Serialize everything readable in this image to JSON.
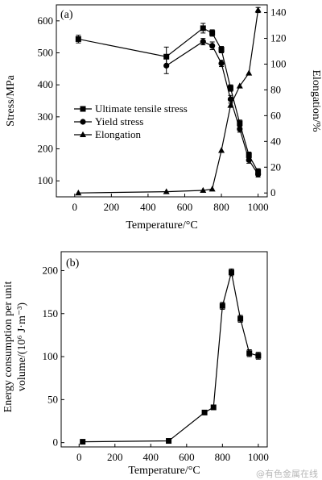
{
  "chart_data": [
    {
      "type": "line",
      "panel_label": "(a)",
      "xlabel": "Temperature/°C",
      "ylabel": "Stress/MPa",
      "y2label": "Elongation/%",
      "xlim": [
        -100,
        1050
      ],
      "ylim": [
        50,
        650
      ],
      "y2lim": [
        -3,
        146
      ],
      "xticks": [
        0,
        200,
        400,
        600,
        800,
        1000
      ],
      "yticks": [
        100,
        200,
        300,
        400,
        500,
        600
      ],
      "y2ticks": [
        0,
        20,
        40,
        60,
        80,
        100,
        120,
        140
      ],
      "legend_position": "center-right",
      "series": [
        {
          "name": "Ultimate tensile stress",
          "axis": "left",
          "marker": "square",
          "x": [
            20,
            500,
            700,
            750,
            800,
            850,
            900,
            950,
            1000
          ],
          "y": [
            543,
            488,
            577,
            562,
            510,
            390,
            280,
            180,
            128
          ],
          "error": [
            12,
            30,
            15,
            10,
            10,
            10,
            10,
            10,
            10
          ]
        },
        {
          "name": "Yield stress",
          "axis": "left",
          "marker": "circle",
          "x": [
            500,
            700,
            750,
            800,
            850,
            900,
            950,
            1000
          ],
          "y": [
            460,
            535,
            522,
            467,
            355,
            262,
            165,
            120
          ],
          "error": [
            25,
            10,
            12,
            10,
            12,
            10,
            10,
            8
          ]
        },
        {
          "name": "Elongation",
          "axis": "right",
          "marker": "triangle",
          "x": [
            20,
            500,
            700,
            750,
            800,
            850,
            900,
            950,
            1000
          ],
          "y": [
            0,
            1,
            2,
            3,
            33,
            68,
            83,
            93,
            142
          ],
          "error": [
            0,
            0,
            0,
            0,
            0,
            0,
            0,
            0,
            2
          ]
        }
      ]
    },
    {
      "type": "line",
      "panel_label": "(b)",
      "xlabel": "Temperature/°C",
      "ylabel_lines": [
        "Energy consumption per unit",
        "volume/(10⁶ J·m⁻³)"
      ],
      "xlim": [
        -100,
        1050
      ],
      "ylim": [
        -5,
        222
      ],
      "xticks": [
        0,
        200,
        400,
        600,
        800,
        1000
      ],
      "yticks": [
        0,
        50,
        100,
        150,
        200
      ],
      "series": [
        {
          "marker": "square",
          "x": [
            20,
            500,
            700,
            750,
            800,
            850,
            900,
            950,
            1000
          ],
          "y": [
            1,
            2,
            35,
            41,
            159,
            198,
            144,
            104,
            101
          ],
          "error": [
            0.5,
            0.5,
            1,
            1,
            4,
            4,
            4,
            4,
            4
          ]
        }
      ]
    }
  ],
  "watermark": "@有色金属在线"
}
